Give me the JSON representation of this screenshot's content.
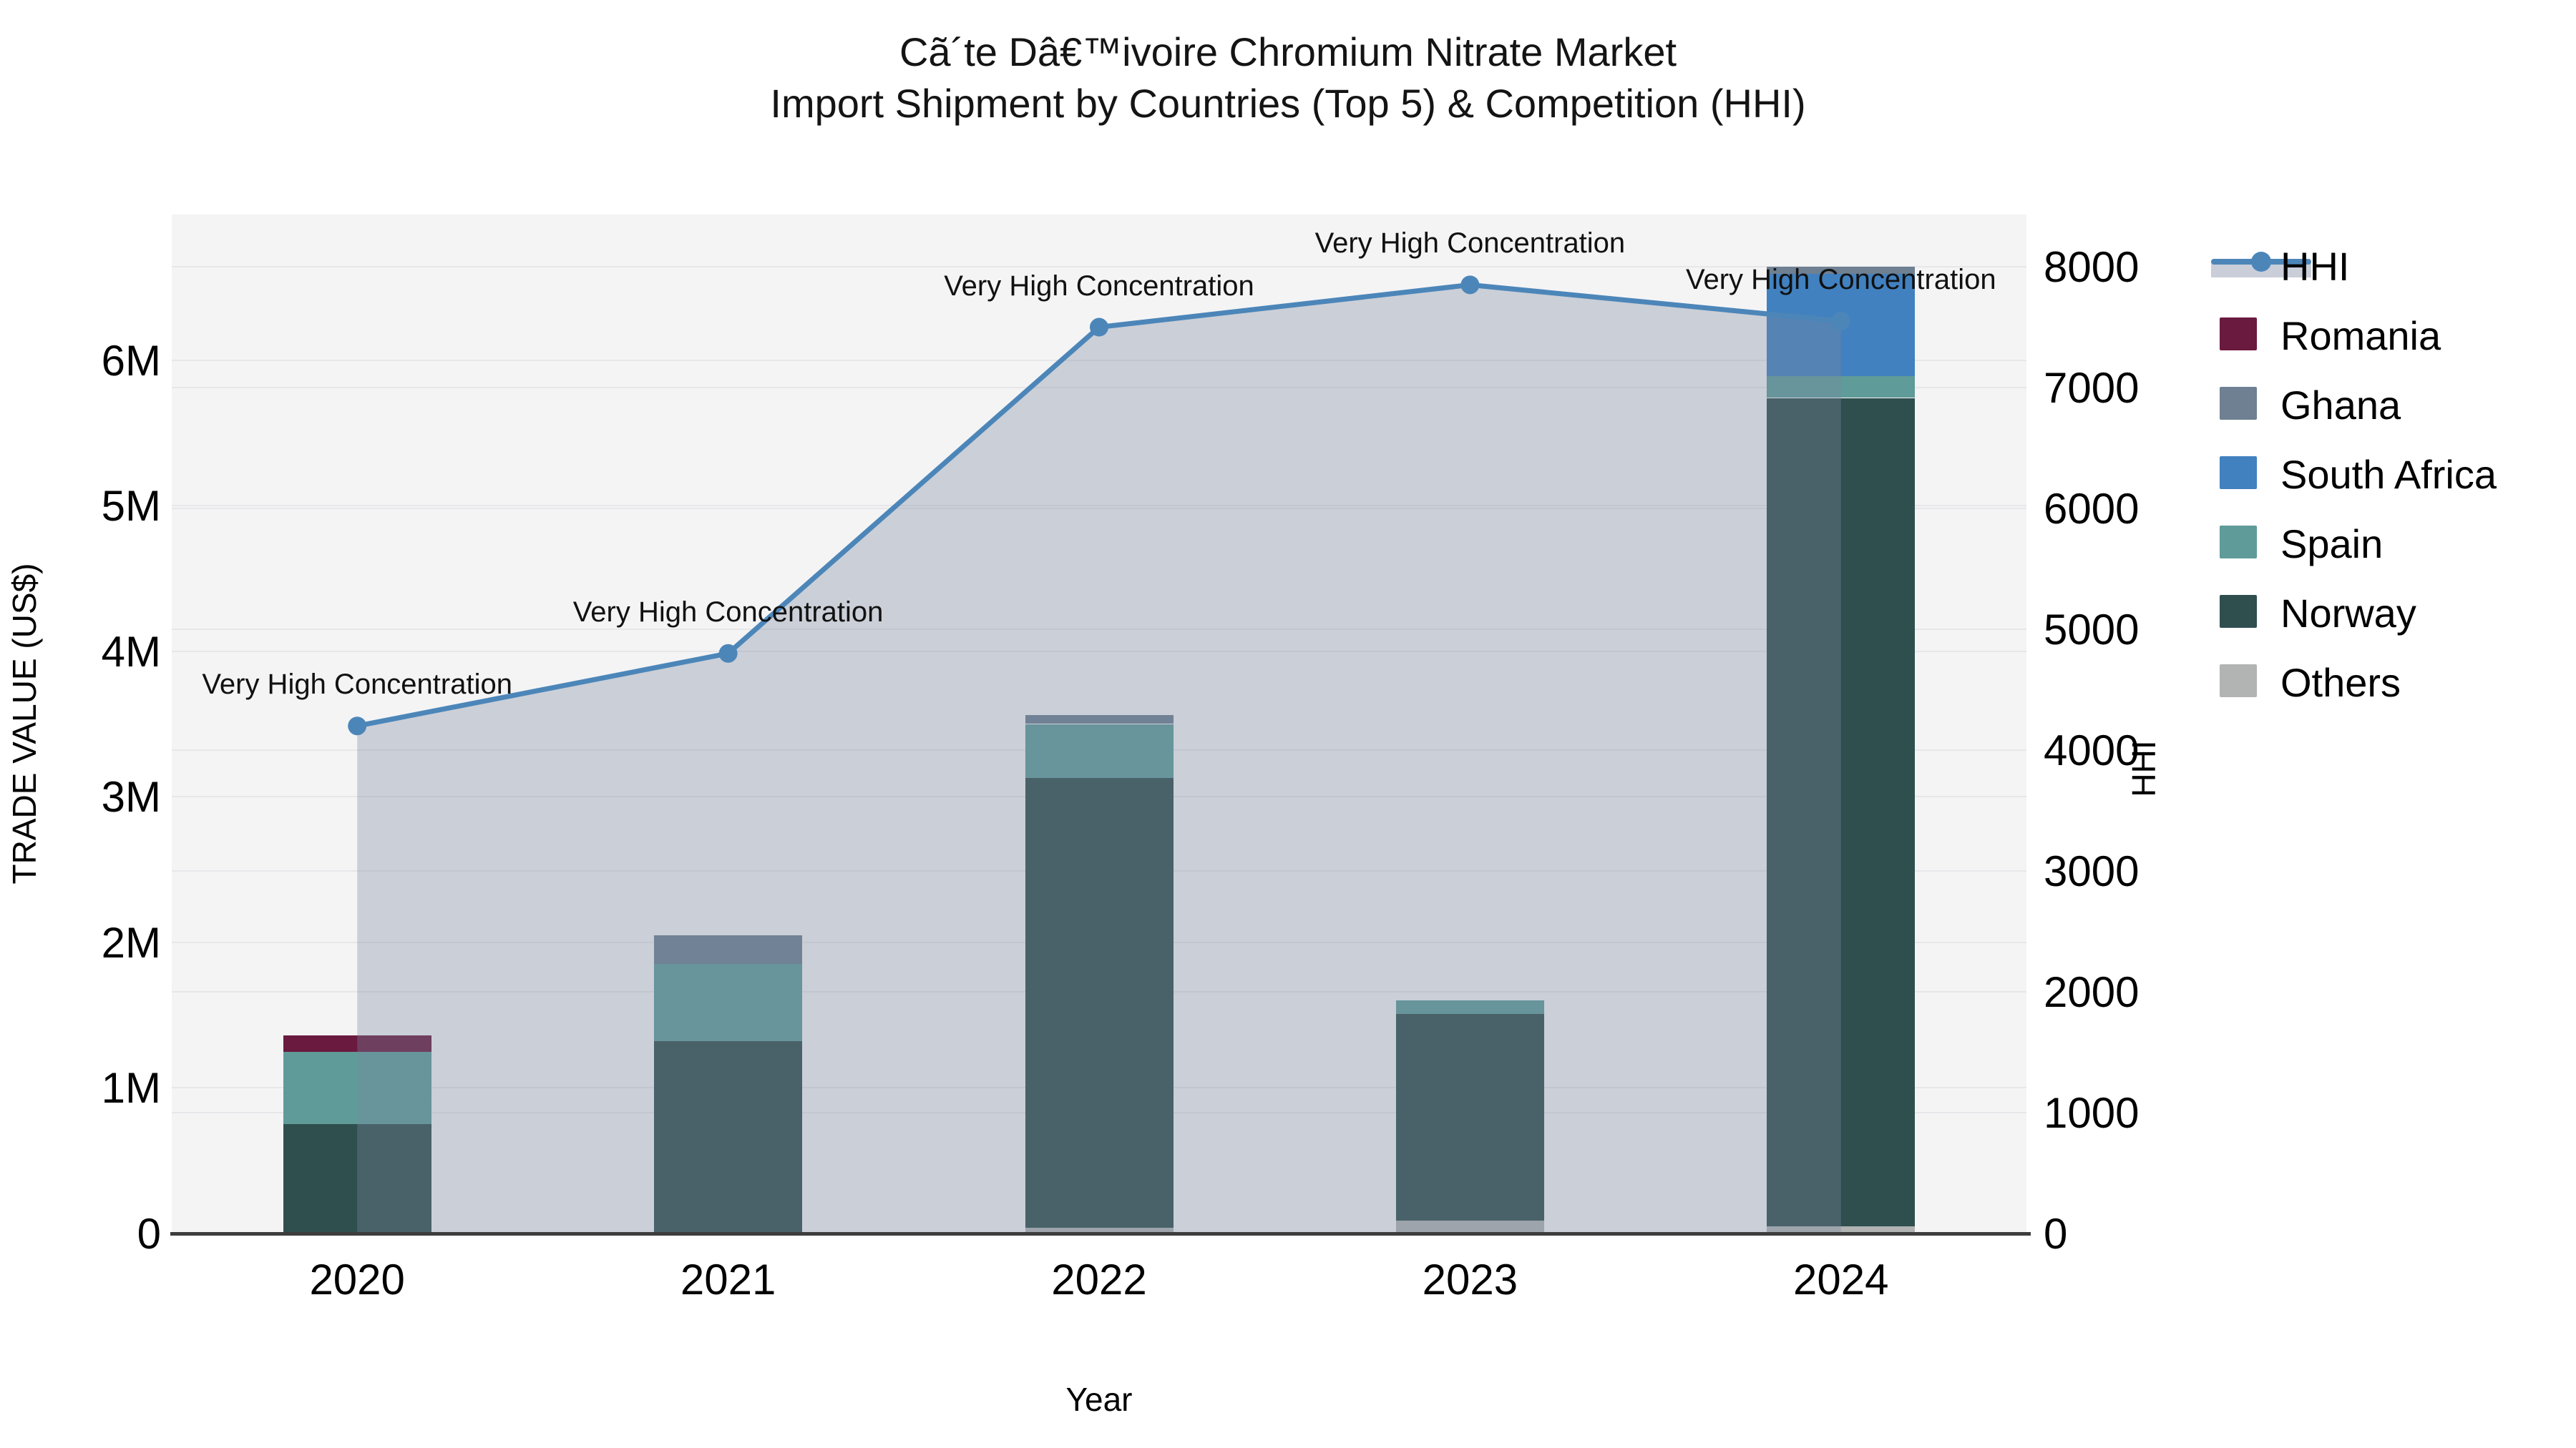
{
  "title": {
    "line1": "Cã´te Dâ€™ivoire Chromium Nitrate Market",
    "line2": "Import Shipment by Countries (Top 5) & Competition (HHI)"
  },
  "legend": {
    "items": [
      {
        "label": "HHI",
        "type": "line",
        "color": "#4c86b9"
      },
      {
        "label": "Romania",
        "type": "swatch",
        "color": "#6a1a3f"
      },
      {
        "label": "Ghana",
        "type": "swatch",
        "color": "#6e8092"
      },
      {
        "label": "South Africa",
        "type": "swatch",
        "color": "#4181c0"
      },
      {
        "label": "Spain",
        "type": "swatch",
        "color": "#5f9b99"
      },
      {
        "label": "Norway",
        "type": "swatch",
        "color": "#2f4f4f"
      },
      {
        "label": "Others",
        "type": "swatch",
        "color": "#b1b4b3"
      }
    ]
  },
  "chart_data": {
    "type": "combo-stacked-bar-line",
    "categories": [
      "2020",
      "2021",
      "2022",
      "2023",
      "2024"
    ],
    "bar_unit": "US$ millions",
    "series": [
      {
        "name": "Romania",
        "color": "#6a1a3f",
        "values": [
          0.11,
          0,
          0,
          0,
          0
        ]
      },
      {
        "name": "Ghana",
        "color": "#6e8092",
        "values": [
          0,
          0.2,
          0.06,
          0,
          0.05
        ]
      },
      {
        "name": "South Africa",
        "color": "#4181c0",
        "values": [
          0,
          0,
          0,
          0,
          0.7
        ]
      },
      {
        "name": "Spain",
        "color": "#5f9b99",
        "values": [
          0.5,
          0.53,
          0.37,
          0.09,
          0.15
        ]
      },
      {
        "name": "Norway",
        "color": "#2f4f4f",
        "values": [
          0.75,
          1.32,
          3.09,
          1.42,
          5.69
        ]
      },
      {
        "name": "Others",
        "color": "#b1b4b3",
        "values": [
          0,
          0,
          0.04,
          0.09,
          0.05
        ]
      }
    ],
    "stack_order": [
      "Others",
      "Norway",
      "Spain",
      "South Africa",
      "Ghana",
      "Romania"
    ],
    "line_series": {
      "name": "HHI",
      "color": "#4c86b9",
      "area_color": "rgba(124,135,157,0.34)",
      "values": [
        4200,
        4800,
        7500,
        7850,
        7550
      ]
    },
    "annotations": [
      "Very High Concentration",
      "Very High Concentration",
      "Very High Concentration",
      "Very High Concentration",
      "Very High Concentration"
    ],
    "left_axis": {
      "label": "TRADE VALUE (US$)",
      "max": 7.0,
      "ticks": [
        {
          "label": "0",
          "value": 0
        },
        {
          "label": "1M",
          "value": 1
        },
        {
          "label": "2M",
          "value": 2
        },
        {
          "label": "3M",
          "value": 3
        },
        {
          "label": "4M",
          "value": 4
        },
        {
          "label": "5M",
          "value": 5
        },
        {
          "label": "6M",
          "value": 6
        }
      ]
    },
    "right_axis": {
      "label": "HHI",
      "max": 8432,
      "ticks": [
        {
          "label": "0",
          "value": 0
        },
        {
          "label": "1000",
          "value": 1000
        },
        {
          "label": "2000",
          "value": 2000
        },
        {
          "label": "3000",
          "value": 3000
        },
        {
          "label": "4000",
          "value": 4000
        },
        {
          "label": "5000",
          "value": 5000
        },
        {
          "label": "6000",
          "value": 6000
        },
        {
          "label": "7000",
          "value": 7000
        },
        {
          "label": "8000",
          "value": 8000
        }
      ]
    },
    "x_label": "Year",
    "grid": true,
    "legend_position": "outside-right"
  }
}
